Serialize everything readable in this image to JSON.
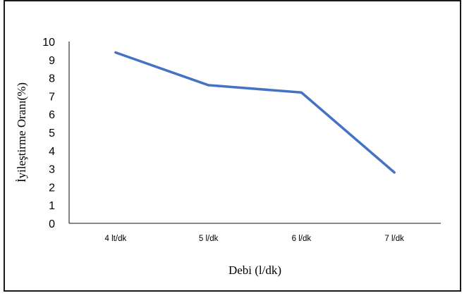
{
  "chart_data": {
    "type": "line",
    "title": "",
    "xlabel": "Debi (l/dk)",
    "ylabel": "İyileştirme Oranı(%)",
    "categories": [
      "4 lt/dk",
      "5 l/dk",
      "6 l/dk",
      "7 l/dk"
    ],
    "series": [
      {
        "values": [
          9.4,
          7.6,
          7.2,
          2.8
        ],
        "color": "#4472C4"
      }
    ],
    "ylim": [
      0,
      10
    ],
    "yticks": [
      "0",
      "1",
      "2",
      "3",
      "4",
      "5",
      "6",
      "7",
      "8",
      "9",
      "10"
    ],
    "grid": false,
    "legend": "none"
  }
}
